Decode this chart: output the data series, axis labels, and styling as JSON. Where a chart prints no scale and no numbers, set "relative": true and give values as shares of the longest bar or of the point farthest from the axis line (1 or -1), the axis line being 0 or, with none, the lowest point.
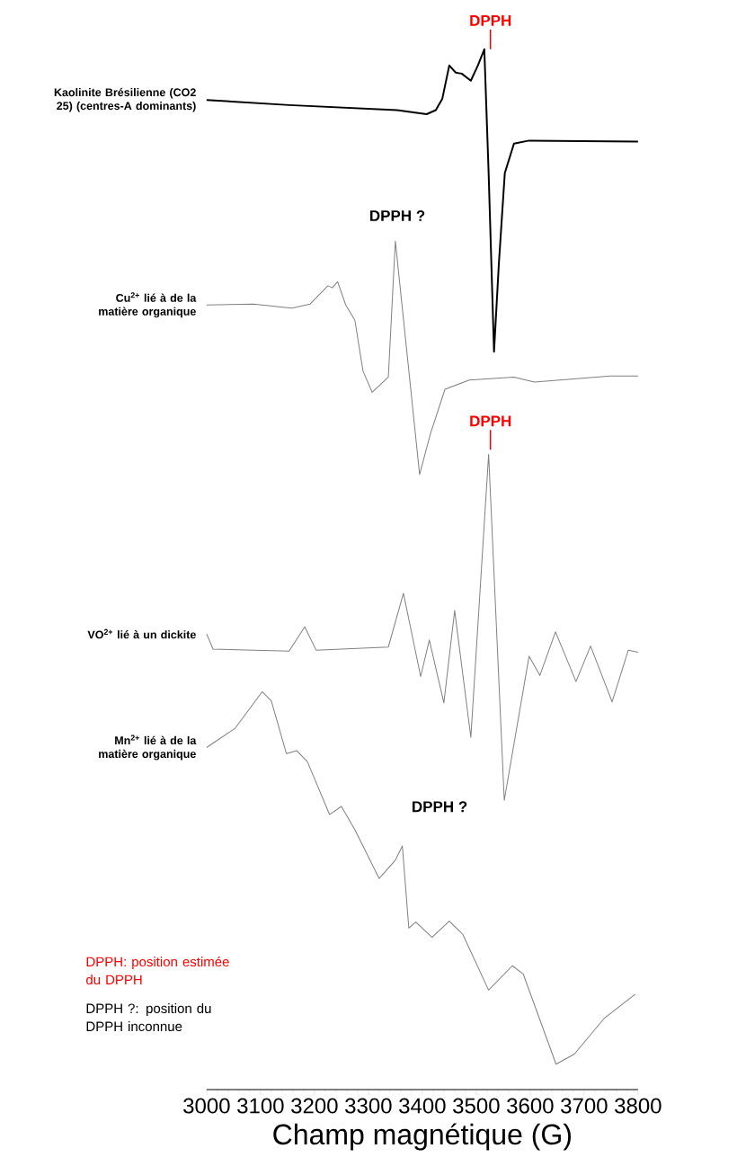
{
  "chart_data": {
    "type": "line",
    "relative": true,
    "xlabel": "Champ magnétique (G)",
    "xlim": [
      3000,
      3800
    ],
    "xticks": [
      3000,
      3100,
      3200,
      3300,
      3400,
      3500,
      3600,
      3700,
      3800
    ],
    "marker": "none",
    "line_style": "solid",
    "series": [
      {
        "name": "Kaolinite Brésilienne (CO2 25) (centres-A dominants)",
        "color": "#000000",
        "x": [
          3000,
          3153,
          3353,
          3408,
          3425,
          3437,
          3450,
          3462,
          3473,
          3490,
          3503,
          3515,
          3523,
          3533,
          3542,
          3553,
          3570,
          3598,
          3800
        ],
        "values": [
          0.95,
          0.945,
          0.94,
          0.936,
          0.94,
          0.951,
          0.984,
          0.977,
          0.976,
          0.969,
          0.984,
          1.0,
          0.878,
          0.702,
          0.789,
          0.878,
          0.907,
          0.91,
          0.909
        ]
      },
      {
        "name": "Cu$^{2+}$ lié à de la matière organique",
        "color": "#808080",
        "x": [
          3000,
          3087,
          3158,
          3192,
          3225,
          3233,
          3243,
          3258,
          3275,
          3290,
          3307,
          3337,
          3350,
          3395,
          3415,
          3442,
          3487,
          3570,
          3608,
          3748,
          3800
        ],
        "values": [
          0.748,
          0.749,
          0.745,
          0.749,
          0.767,
          0.765,
          0.771,
          0.748,
          0.733,
          0.683,
          0.662,
          0.677,
          0.811,
          0.581,
          0.621,
          0.665,
          0.674,
          0.677,
          0.672,
          0.678,
          0.678
        ]
      },
      {
        "name": "VO$^{2+}$ lié à un dickite",
        "color": "#808080",
        "x": [
          3000,
          3012,
          3153,
          3182,
          3203,
          3337,
          3365,
          3397,
          3413,
          3440,
          3460,
          3490,
          3523,
          3552,
          3598,
          3618,
          3647,
          3685,
          3712,
          3752,
          3782,
          3800
        ],
        "values": [
          0.424,
          0.409,
          0.407,
          0.431,
          0.408,
          0.411,
          0.464,
          0.382,
          0.418,
          0.356,
          0.447,
          0.322,
          0.601,
          0.26,
          0.402,
          0.383,
          0.426,
          0.377,
          0.412,
          0.357,
          0.408,
          0.406
        ]
      },
      {
        "name": "Mn$^{2+}$ lié à de la matière organique",
        "color": "#808080",
        "x": [
          3000,
          3053,
          3103,
          3120,
          3148,
          3167,
          3187,
          3228,
          3250,
          3275,
          3320,
          3350,
          3363,
          3375,
          3388,
          3418,
          3450,
          3475,
          3523,
          3567,
          3587,
          3648,
          3682,
          3737,
          3795
        ],
        "values": [
          0.312,
          0.331,
          0.367,
          0.358,
          0.306,
          0.309,
          0.298,
          0.246,
          0.254,
          0.231,
          0.183,
          0.201,
          0.215,
          0.134,
          0.14,
          0.125,
          0.141,
          0.128,
          0.073,
          0.097,
          0.089,
          0.0,
          0.01,
          0.045,
          0.069
        ]
      }
    ],
    "annotations": [
      "DPPH",
      "DPPH",
      "DPPH ?",
      "DPPH ?",
      "DPPH: position estimée du DPPH",
      "DPPH ?: position du DPPH inconnue"
    ]
  }
}
